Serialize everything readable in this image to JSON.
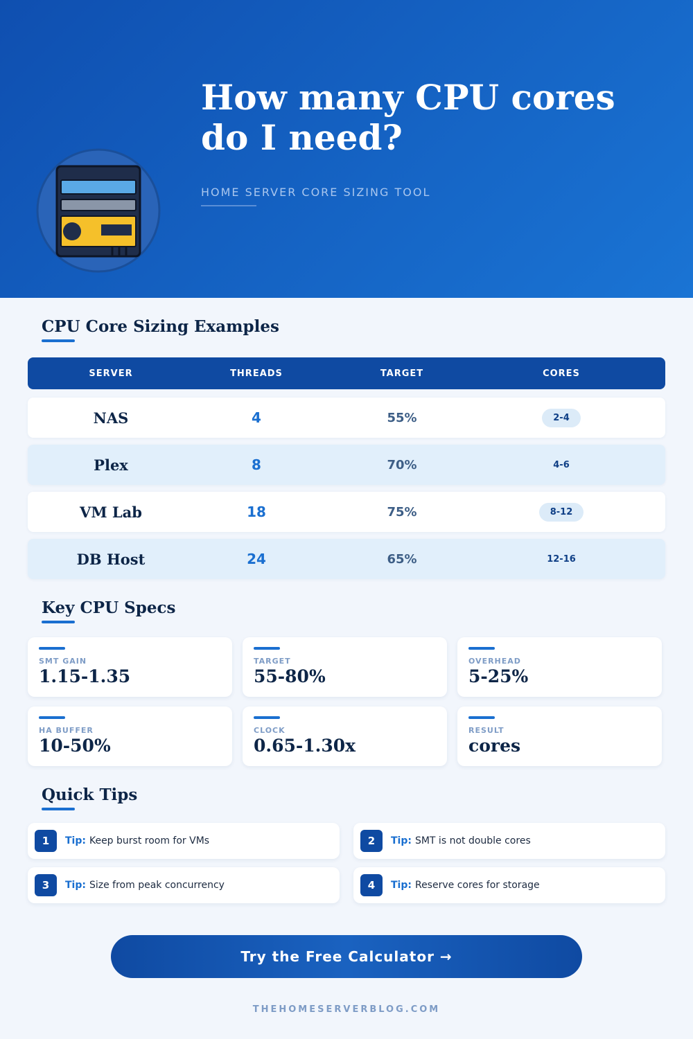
{
  "header": {
    "title": "How many CPU cores do I need?",
    "subtitle": "HOME SERVER CORE SIZING TOOL"
  },
  "table": {
    "title": "CPU Core Sizing Examples",
    "columns": [
      "SERVER",
      "THREADS",
      "TARGET",
      "CORES"
    ],
    "rows": [
      [
        "NAS",
        "4",
        "55%",
        "2-4"
      ],
      [
        "Plex",
        "8",
        "70%",
        "4-6"
      ],
      [
        "VM Lab",
        "18",
        "75%",
        "8-12"
      ],
      [
        "DB Host",
        "24",
        "65%",
        "12-16"
      ]
    ]
  },
  "specs": {
    "title": "Key CPU Specs",
    "items": [
      {
        "label": "SMT GAIN",
        "value": "1.15-1.35"
      },
      {
        "label": "TARGET",
        "value": "55-80%"
      },
      {
        "label": "OVERHEAD",
        "value": "5-25%"
      },
      {
        "label": "HA BUFFER",
        "value": "10-50%"
      },
      {
        "label": "CLOCK",
        "value": "0.65-1.30x"
      },
      {
        "label": "RESULT",
        "value": "cores"
      }
    ]
  },
  "tips": {
    "title": "Quick Tips",
    "prefix": "Tip:",
    "items": [
      {
        "number": "1",
        "text": "Keep burst room for VMs"
      },
      {
        "number": "2",
        "text": "SMT is not double cores"
      },
      {
        "number": "3",
        "text": "Size from peak concurrency"
      },
      {
        "number": "4",
        "text": "Reserve cores for storage"
      }
    ]
  },
  "cta": "Try the Free Calculator →",
  "footer": "THEHOMESERVERBLOG.COM"
}
